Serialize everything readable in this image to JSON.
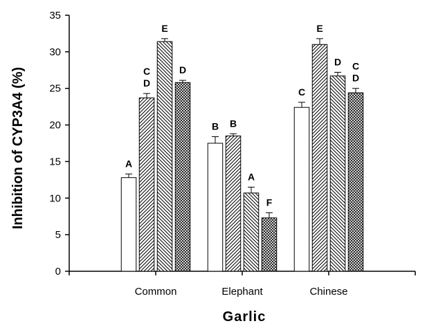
{
  "chart_data": {
    "type": "bar",
    "title": "",
    "xlabel": "Garlic",
    "ylabel": "Inhibition of CYP3A4 (%)",
    "ylim": [
      0,
      35
    ],
    "yticks": [
      0,
      5,
      10,
      15,
      20,
      25,
      30,
      35
    ],
    "grid": false,
    "legend": "none",
    "categories": [
      "Common",
      "Elephant",
      "Chinese"
    ],
    "series": [
      {
        "fill": "white",
        "values": [
          12.8,
          17.5,
          22.4
        ],
        "errors": [
          0.5,
          0.9,
          0.7
        ],
        "labels": [
          "A",
          "B",
          "C"
        ]
      },
      {
        "fill": "hatch-slash",
        "values": [
          23.7,
          18.5,
          31.0
        ],
        "errors": [
          0.6,
          0.3,
          0.8
        ],
        "labels": [
          "C\nD",
          "B",
          "E"
        ]
      },
      {
        "fill": "hatch-back",
        "values": [
          31.4,
          10.7,
          26.7
        ],
        "errors": [
          0.4,
          0.8,
          0.5
        ],
        "labels": [
          "E",
          "A",
          "D"
        ]
      },
      {
        "fill": "crosshatch",
        "values": [
          25.8,
          7.3,
          24.4
        ],
        "errors": [
          0.3,
          0.7,
          0.6
        ],
        "labels": [
          "D",
          "F",
          "C\nD"
        ]
      }
    ]
  }
}
